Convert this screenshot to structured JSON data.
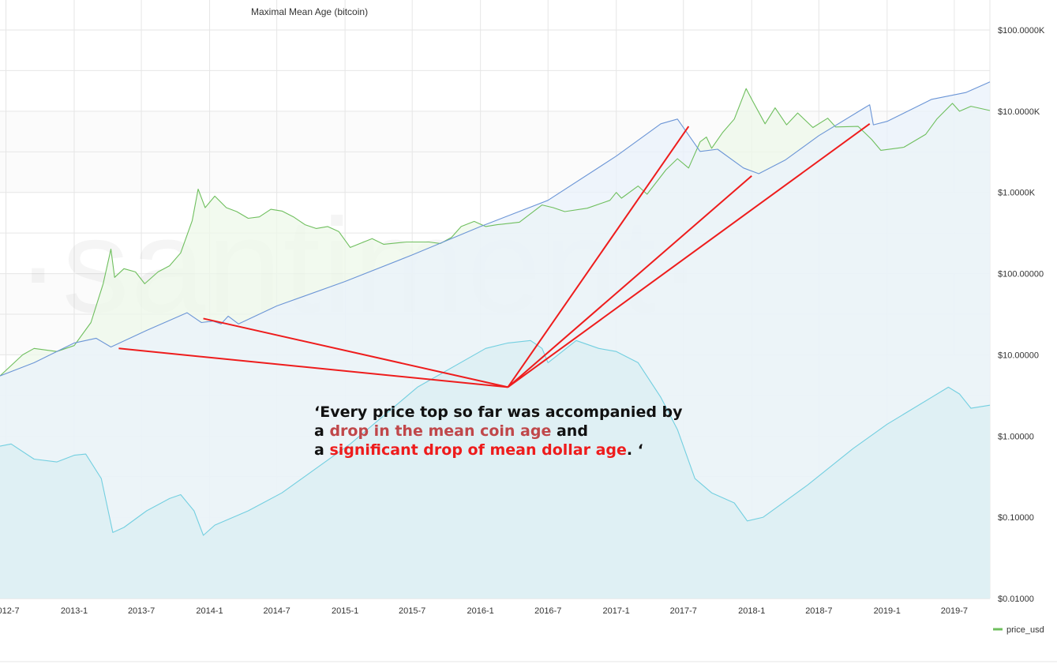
{
  "chart_data": {
    "type": "line",
    "title": "Maximal Mean Age (bitcoin)",
    "watermark": "·santiment·",
    "y_scale": "log",
    "ylim": [
      0.01,
      100000
    ],
    "y_ticks": [
      "$100.0000K",
      "$10.0000K",
      "$1.0000K",
      "$100.00000",
      "$10.00000",
      "$1.00000",
      "$0.10000",
      "$0.01000"
    ],
    "x_ticks": [
      "2012-7",
      "2013-1",
      "2013-7",
      "2014-1",
      "2014-7",
      "2015-1",
      "2015-7",
      "2016-1",
      "2016-7",
      "2017-1",
      "2017-7",
      "2018-1",
      "2018-7",
      "2019-1",
      "2019-7"
    ],
    "xlim": [
      "2012-06-15",
      "2019-10-05"
    ],
    "grid": true,
    "legend": [
      {
        "name": "price_usd",
        "color": "#6fbf5e",
        "placement": "bottom-right"
      }
    ],
    "series": [
      {
        "name": "price_usd",
        "color": "#6fbf5e",
        "fill": "#eef8e9",
        "points": [
          [
            "2012-06-15",
            5.5
          ],
          [
            "2012-08-15",
            10
          ],
          [
            "2012-09-15",
            12
          ],
          [
            "2012-11-15",
            11
          ],
          [
            "2013-01-01",
            13
          ],
          [
            "2013-02-15",
            25
          ],
          [
            "2013-03-20",
            75
          ],
          [
            "2013-04-10",
            200
          ],
          [
            "2013-04-20",
            90
          ],
          [
            "2013-05-15",
            115
          ],
          [
            "2013-06-15",
            105
          ],
          [
            "2013-07-10",
            75
          ],
          [
            "2013-08-15",
            105
          ],
          [
            "2013-09-15",
            125
          ],
          [
            "2013-10-15",
            180
          ],
          [
            "2013-11-15",
            450
          ],
          [
            "2013-12-01",
            1100
          ],
          [
            "2013-12-20",
            650
          ],
          [
            "2014-01-15",
            900
          ],
          [
            "2014-02-15",
            650
          ],
          [
            "2014-03-15",
            580
          ],
          [
            "2014-04-15",
            480
          ],
          [
            "2014-05-15",
            500
          ],
          [
            "2014-06-15",
            620
          ],
          [
            "2014-07-15",
            590
          ],
          [
            "2014-08-15",
            500
          ],
          [
            "2014-09-15",
            400
          ],
          [
            "2014-10-15",
            360
          ],
          [
            "2014-11-15",
            380
          ],
          [
            "2014-12-15",
            330
          ],
          [
            "2015-01-15",
            210
          ],
          [
            "2015-02-15",
            240
          ],
          [
            "2015-03-15",
            270
          ],
          [
            "2015-04-15",
            230
          ],
          [
            "2015-06-15",
            245
          ],
          [
            "2015-08-15",
            245
          ],
          [
            "2015-09-15",
            235
          ],
          [
            "2015-10-15",
            280
          ],
          [
            "2015-11-10",
            380
          ],
          [
            "2015-12-15",
            440
          ],
          [
            "2016-01-15",
            380
          ],
          [
            "2016-02-15",
            400
          ],
          [
            "2016-04-15",
            430
          ],
          [
            "2016-06-15",
            700
          ],
          [
            "2016-07-15",
            650
          ],
          [
            "2016-08-15",
            580
          ],
          [
            "2016-10-15",
            640
          ],
          [
            "2016-12-15",
            800
          ],
          [
            "2017-01-01",
            1000
          ],
          [
            "2017-01-15",
            850
          ],
          [
            "2017-03-01",
            1200
          ],
          [
            "2017-03-25",
            950
          ],
          [
            "2017-05-15",
            1900
          ],
          [
            "2017-06-15",
            2600
          ],
          [
            "2017-07-15",
            2000
          ],
          [
            "2017-08-15",
            4200
          ],
          [
            "2017-09-01",
            4800
          ],
          [
            "2017-09-15",
            3500
          ],
          [
            "2017-10-15",
            5500
          ],
          [
            "2017-11-15",
            8000
          ],
          [
            "2017-12-17",
            19000
          ],
          [
            "2018-01-01",
            14000
          ],
          [
            "2018-02-06",
            7000
          ],
          [
            "2018-03-05",
            11000
          ],
          [
            "2018-04-05",
            6800
          ],
          [
            "2018-05-05",
            9500
          ],
          [
            "2018-06-15",
            6300
          ],
          [
            "2018-07-25",
            8200
          ],
          [
            "2018-08-15",
            6400
          ],
          [
            "2018-10-15",
            6500
          ],
          [
            "2018-11-20",
            4500
          ],
          [
            "2018-12-15",
            3300
          ],
          [
            "2019-02-15",
            3600
          ],
          [
            "2019-04-15",
            5200
          ],
          [
            "2019-05-15",
            8000
          ],
          [
            "2019-06-26",
            12500
          ],
          [
            "2019-07-15",
            10000
          ],
          [
            "2019-08-15",
            11500
          ],
          [
            "2019-10-05",
            10200
          ]
        ]
      },
      {
        "name": "mean coin age",
        "color": "#6b95d6",
        "fill": "#eaf2fb",
        "points": [
          [
            "2012-06-15",
            5.5
          ],
          [
            "2012-09-15",
            8
          ],
          [
            "2013-01-01",
            14
          ],
          [
            "2013-03-01",
            16
          ],
          [
            "2013-04-10",
            12.5
          ],
          [
            "2013-07-15",
            20
          ],
          [
            "2013-11-01",
            33
          ],
          [
            "2013-12-10",
            25
          ],
          [
            "2014-01-10",
            26
          ],
          [
            "2014-02-01",
            24
          ],
          [
            "2014-02-20",
            30
          ],
          [
            "2014-03-20",
            24
          ],
          [
            "2014-07-01",
            40
          ],
          [
            "2015-01-01",
            80
          ],
          [
            "2015-07-01",
            170
          ],
          [
            "2016-01-01",
            380
          ],
          [
            "2016-07-01",
            800
          ],
          [
            "2017-01-01",
            2800
          ],
          [
            "2017-05-01",
            7000
          ],
          [
            "2017-06-15",
            8000
          ],
          [
            "2017-08-15",
            3200
          ],
          [
            "2017-10-01",
            3400
          ],
          [
            "2017-12-10",
            2000
          ],
          [
            "2018-01-20",
            1700
          ],
          [
            "2018-04-01",
            2500
          ],
          [
            "2018-07-01",
            5000
          ],
          [
            "2018-11-01",
            11000
          ],
          [
            "2018-11-15",
            12000
          ],
          [
            "2018-11-25",
            6800
          ],
          [
            "2019-01-01",
            7500
          ],
          [
            "2019-05-01",
            14000
          ],
          [
            "2019-08-01",
            17000
          ],
          [
            "2019-10-05",
            23000
          ]
        ]
      },
      {
        "name": "mean dollar age",
        "color": "#73cfe0",
        "fill": "#dbeff3",
        "points": [
          [
            "2012-06-15",
            0.75
          ],
          [
            "2012-07-15",
            0.8
          ],
          [
            "2012-09-15",
            0.52
          ],
          [
            "2012-11-15",
            0.48
          ],
          [
            "2013-01-01",
            0.58
          ],
          [
            "2013-02-01",
            0.6
          ],
          [
            "2013-03-15",
            0.3
          ],
          [
            "2013-04-15",
            0.065
          ],
          [
            "2013-05-15",
            0.075
          ],
          [
            "2013-07-15",
            0.12
          ],
          [
            "2013-09-15",
            0.17
          ],
          [
            "2013-10-15",
            0.19
          ],
          [
            "2013-11-20",
            0.12
          ],
          [
            "2013-12-15",
            0.06
          ],
          [
            "2014-01-15",
            0.08
          ],
          [
            "2014-04-15",
            0.12
          ],
          [
            "2014-07-15",
            0.2
          ],
          [
            "2014-10-15",
            0.4
          ],
          [
            "2015-01-15",
            0.8
          ],
          [
            "2015-07-15",
            4
          ],
          [
            "2016-01-15",
            12
          ],
          [
            "2016-03-15",
            14
          ],
          [
            "2016-05-15",
            15
          ],
          [
            "2016-06-15",
            12
          ],
          [
            "2016-07-01",
            8
          ],
          [
            "2016-09-15",
            15
          ],
          [
            "2016-11-15",
            12
          ],
          [
            "2017-01-01",
            11
          ],
          [
            "2017-03-01",
            8
          ],
          [
            "2017-05-01",
            3
          ],
          [
            "2017-06-15",
            1.2
          ],
          [
            "2017-08-01",
            0.3
          ],
          [
            "2017-09-15",
            0.2
          ],
          [
            "2017-11-15",
            0.15
          ],
          [
            "2017-12-20",
            0.09
          ],
          [
            "2018-02-01",
            0.1
          ],
          [
            "2018-06-01",
            0.25
          ],
          [
            "2018-10-01",
            0.7
          ],
          [
            "2019-01-01",
            1.4
          ],
          [
            "2019-05-01",
            3
          ],
          [
            "2019-06-15",
            4
          ],
          [
            "2019-07-15",
            3.3
          ],
          [
            "2019-08-15",
            2.2
          ],
          [
            "2019-10-05",
            2.4
          ]
        ]
      }
    ],
    "annotation_arrows": {
      "origin": [
        "2016-03-15",
        4
      ],
      "targets": [
        [
          "2013-05-01",
          12
        ],
        [
          "2013-12-15",
          28
        ],
        [
          "2017-07-15",
          6500
        ],
        [
          "2018-01-01",
          1600
        ],
        [
          "2018-11-15",
          7000
        ]
      ],
      "color": "#ee1c1c"
    }
  },
  "annotation": {
    "line1": "‘Every price top so far was accompanied by",
    "line2_prefix": "a ",
    "line2_highlight": "drop in the mean coin age",
    "line2_suffix": " and",
    "line3_prefix": "a ",
    "line3_highlight": "significant drop of mean dollar age",
    "line3_suffix": ". ‘"
  }
}
